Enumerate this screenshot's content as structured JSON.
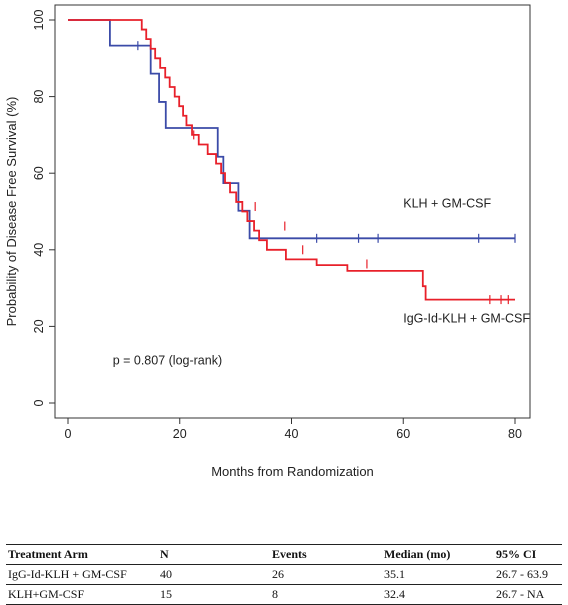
{
  "chart_data": {
    "type": "line",
    "title": "",
    "xlabel": "Months from Randomization",
    "ylabel": "Probability of Disease Free Survival (%)",
    "xlim": [
      0,
      80
    ],
    "ylim": [
      0,
      100
    ],
    "xticks": [
      "0",
      "20",
      "40",
      "60",
      "80"
    ],
    "yticks": [
      "0",
      "20",
      "40",
      "60",
      "80",
      "100"
    ],
    "grid": false,
    "legend": "none",
    "annotations": [
      {
        "text": "KLH + GM-CSF",
        "x": 60,
        "y": 51,
        "series": "KLH + GM-CSF"
      },
      {
        "text": "IgG-Id-KLH + GM-CSF",
        "x": 60,
        "y": 21,
        "series": "IgG-Id-KLH + GM-CSF"
      },
      {
        "text": "p = 0.807 (log-rank)",
        "x": 8,
        "y": 10
      }
    ],
    "series": [
      {
        "name": "IgG-Id-KLH + GM-CSF",
        "color": "#e8202a",
        "x": [
          0,
          12.5,
          13.2,
          14,
          14.8,
          15.6,
          16.5,
          17.4,
          18.2,
          19.1,
          19.9,
          20.6,
          21.2,
          22.2,
          23.4,
          25,
          26.5,
          27.4,
          28.1,
          29,
          30.1,
          31.2,
          32.1,
          33.3,
          34.2,
          35.6,
          39,
          44.5,
          50,
          63.5,
          64,
          80
        ],
        "y": [
          100,
          100,
          97.5,
          95,
          92.5,
          90,
          87.5,
          85,
          82.5,
          80,
          77.5,
          75,
          72.5,
          70,
          67.5,
          65,
          62.5,
          60,
          57.5,
          55,
          52.5,
          50,
          47.5,
          45,
          42.5,
          40,
          37.5,
          36,
          34.5,
          30.5,
          27,
          27
        ],
        "censor_x": [
          22.5,
          33.5,
          38.8,
          42,
          53.5,
          75.5,
          77.5,
          78.8
        ],
        "censor_y": [
          70,
          51.3,
          46.2,
          40,
          36.3,
          27,
          27,
          27
        ]
      },
      {
        "name": "KLH + GM-CSF",
        "color": "#3b4ba8",
        "x": [
          0,
          7.5,
          14.8,
          16.3,
          17.5,
          26.8,
          27.8,
          30.5,
          32.5,
          80
        ],
        "y": [
          100,
          93.3,
          86,
          78.6,
          71.8,
          64.3,
          57.4,
          50.2,
          43,
          43
        ],
        "censor_x": [
          12.5,
          44.5,
          52,
          55.5,
          73.5,
          80
        ],
        "censor_y": [
          93.3,
          43,
          43,
          43,
          43,
          43
        ]
      }
    ]
  },
  "table": {
    "headers": [
      "Treatment Arm",
      "N",
      "Events",
      "Median (mo)",
      "95% CI"
    ],
    "rows": [
      [
        "IgG-Id-KLH + GM-CSF",
        "40",
        "26",
        "35.1",
        "26.7 - 63.9"
      ],
      [
        "KLH+GM-CSF",
        "15",
        "8",
        "32.4",
        "26.7 - NA"
      ]
    ]
  }
}
